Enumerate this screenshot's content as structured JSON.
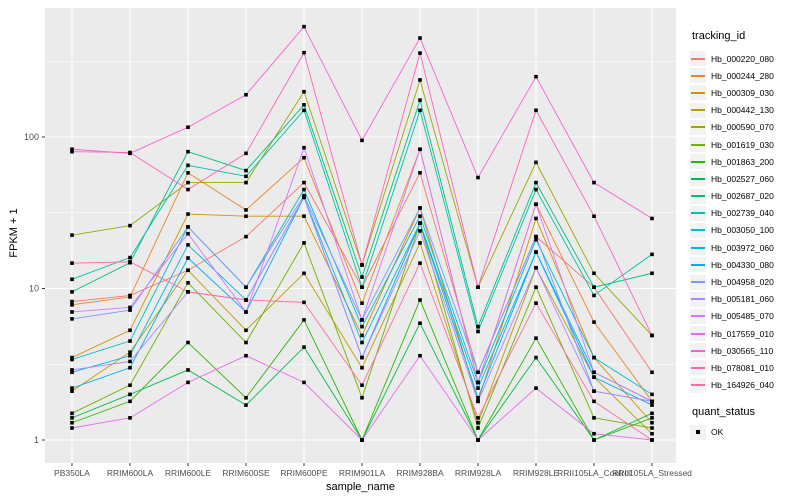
{
  "axis": {
    "x_title": "sample_name",
    "y_title": "FPKM + 1",
    "y_tick_labels": [
      "100",
      "10",
      "1"
    ]
  },
  "legend": {
    "tracking_title": "tracking_id",
    "quant_title": "quant_status",
    "quant_items": [
      {
        "label": "OK",
        "shape": "filled-square-icon",
        "color": "#000000"
      }
    ]
  },
  "chart_data": {
    "type": "line",
    "title": "",
    "xlabel": "sample_name",
    "ylabel": "FPKM + 1",
    "y_scale": "log10",
    "grid": true,
    "legend_position": "right",
    "panel_bg": "#EBEBEB",
    "grid_color": "#FFFFFF",
    "point_shape": "filled-square",
    "point_color": "#000000",
    "y_ticks": [
      1,
      10,
      100
    ],
    "y_minor_ticks": [
      3.162,
      31.623,
      316.228
    ],
    "ylim": [
      0.9,
      720
    ],
    "categories": [
      "PB350LA",
      "RRIM600LA",
      "RRIM600LE",
      "RRIM600SE",
      "RRIM600PE",
      "RRIM901LA",
      "RRIM928BA",
      "RRIM928LA",
      "RRIM928LE",
      "RRII105LA_Control",
      "RRII105LA_Stressed"
    ],
    "series": [
      {
        "name": "Hb_000220_080",
        "color": "#F8766D",
        "values": [
          8.2,
          9.0,
          13.2,
          22,
          50,
          10.2,
          58,
          2.8,
          22,
          10.2,
          2.8
        ]
      },
      {
        "name": "Hb_000244_280",
        "color": "#E9842C",
        "values": [
          7.8,
          8.8,
          58,
          33,
          73,
          8.0,
          83,
          2.4,
          36,
          6.0,
          1.8
        ]
      },
      {
        "name": "Hb_000309_030",
        "color": "#D69100",
        "values": [
          3.5,
          5.3,
          31,
          30,
          30,
          4.9,
          34,
          1.8,
          29,
          3.5,
          1.3
        ]
      },
      {
        "name": "Hb_000442_130",
        "color": "#BC9D00",
        "values": [
          2.1,
          3.8,
          13.2,
          5.3,
          12.6,
          3.0,
          20,
          1.3,
          13.7,
          2.6,
          1.1
        ]
      },
      {
        "name": "Hb_000590_070",
        "color": "#9CA700",
        "values": [
          22.5,
          26,
          50,
          50,
          199,
          14.3,
          238,
          10.2,
          68,
          12.6,
          4.9
        ]
      },
      {
        "name": "Hb_001619_030",
        "color": "#6FB000",
        "values": [
          1.5,
          2.3,
          10.9,
          4.4,
          20,
          1.9,
          27,
          1.2,
          10.2,
          1.4,
          1.2
        ]
      },
      {
        "name": "Hb_001863_200",
        "color": "#2CB600",
        "values": [
          1.3,
          1.8,
          4.4,
          1.9,
          6.2,
          1.0,
          8.4,
          1.0,
          4.7,
          1.0,
          1.4
        ]
      },
      {
        "name": "Hb_002527_060",
        "color": "#00BB4B",
        "values": [
          1.4,
          2.0,
          2.9,
          1.7,
          4.1,
          1.0,
          5.9,
          1.0,
          3.5,
          1.0,
          1.5
        ]
      },
      {
        "name": "Hb_002687_020",
        "color": "#00BF7F",
        "values": [
          9.5,
          14.8,
          80,
          60,
          163,
          11.9,
          175,
          5.6,
          50,
          10.2,
          12.6
        ]
      },
      {
        "name": "Hb_002739_040",
        "color": "#00C0A9",
        "values": [
          11.5,
          16,
          65,
          55,
          150,
          10.2,
          150,
          5.2,
          45,
          9.0,
          16.8
        ]
      },
      {
        "name": "Hb_003050_100",
        "color": "#00BDCD",
        "values": [
          3.4,
          4.5,
          25.5,
          10.2,
          45,
          5.6,
          30,
          2.4,
          21,
          3.5,
          2.0
        ]
      },
      {
        "name": "Hb_003972_060",
        "color": "#00B7E8",
        "values": [
          2.8,
          3.6,
          19.4,
          8.4,
          40,
          4.4,
          27,
          2.2,
          17.4,
          2.8,
          1.8
        ]
      },
      {
        "name": "Hb_004330_080",
        "color": "#00ABFD",
        "values": [
          2.2,
          3.0,
          15.9,
          7.0,
          40,
          3.5,
          27,
          1.9,
          17.4,
          2.6,
          1.7
        ]
      },
      {
        "name": "Hb_004958_020",
        "color": "#7599FF",
        "values": [
          6.3,
          7.2,
          25.5,
          10.2,
          41,
          6.2,
          34,
          2.8,
          22,
          2.1,
          1.8
        ]
      },
      {
        "name": "Hb_005181_060",
        "color": "#AC88FF",
        "values": [
          2.9,
          3.3,
          9.5,
          8.4,
          40,
          3.5,
          24,
          1.8,
          13.7,
          2.1,
          1.8
        ]
      },
      {
        "name": "Hb_005485_070",
        "color": "#D277FF",
        "values": [
          7.0,
          7.5,
          23,
          7.0,
          85,
          6.2,
          83,
          2.4,
          36,
          2.8,
          1.8
        ]
      },
      {
        "name": "Hb_017559_010",
        "color": "#EB69F0",
        "values": [
          1.2,
          1.4,
          2.4,
          3.6,
          2.4,
          1.0,
          3.6,
          1.0,
          2.2,
          1.1,
          1.0
        ]
      },
      {
        "name": "Hb_030565_110",
        "color": "#FA61D7",
        "values": [
          83,
          78,
          116,
          190,
          535,
          95,
          450,
          54,
          250,
          50,
          29
        ]
      },
      {
        "name": "Hb_078081_010",
        "color": "#FF62BC",
        "values": [
          80,
          79,
          45,
          78,
          360,
          14.3,
          358,
          10.2,
          150,
          30,
          4.9
        ]
      },
      {
        "name": "Hb_164926_040",
        "color": "#FF6C9F",
        "values": [
          14.7,
          15,
          9.5,
          8.4,
          8.1,
          2.3,
          14.7,
          1.4,
          8.0,
          1.8,
          1.0
        ]
      }
    ]
  }
}
